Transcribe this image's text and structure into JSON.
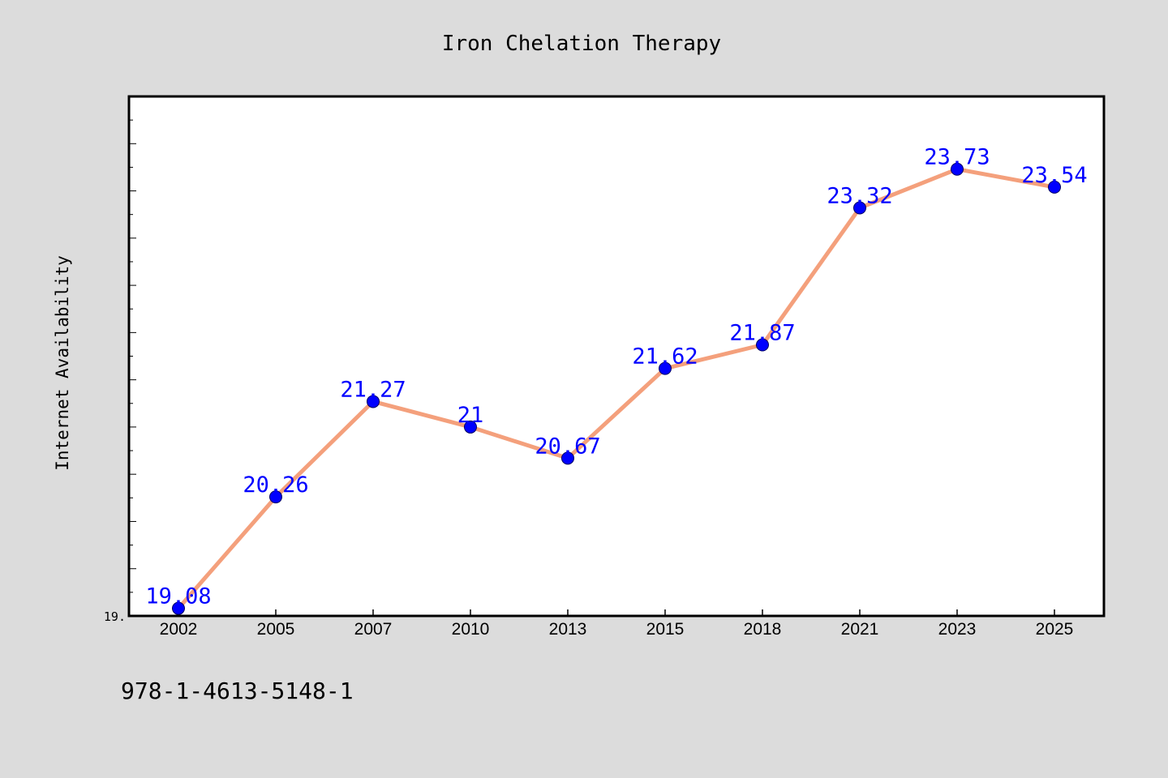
{
  "chart_data": {
    "type": "line",
    "title": "Iron Chelation Therapy",
    "xlabel": "",
    "ylabel": "Internet Availability",
    "categories": [
      "2002",
      "2005",
      "2007",
      "2010",
      "2013",
      "2015",
      "2018",
      "2021",
      "2023",
      "2025"
    ],
    "values": [
      19.08,
      20.26,
      21.27,
      21,
      20.67,
      21.62,
      21.87,
      23.32,
      23.73,
      23.54
    ],
    "point_labels": [
      "19.08",
      "20.26",
      "21.27",
      "21",
      "20.67",
      "21.62",
      "21.87",
      "23.32",
      "23.73",
      "23.54"
    ],
    "ylim": [
      19,
      24.5
    ],
    "y_tick_label": "19.",
    "grid": false,
    "legend": "none",
    "colors": {
      "line": "#f4a07c",
      "marker": "#0000ff",
      "data_label": "#0000ff",
      "background": "#dcdcdc",
      "plot_background": "#ffffff"
    }
  },
  "footer": {
    "isbn": "978-1-4613-5148-1"
  }
}
